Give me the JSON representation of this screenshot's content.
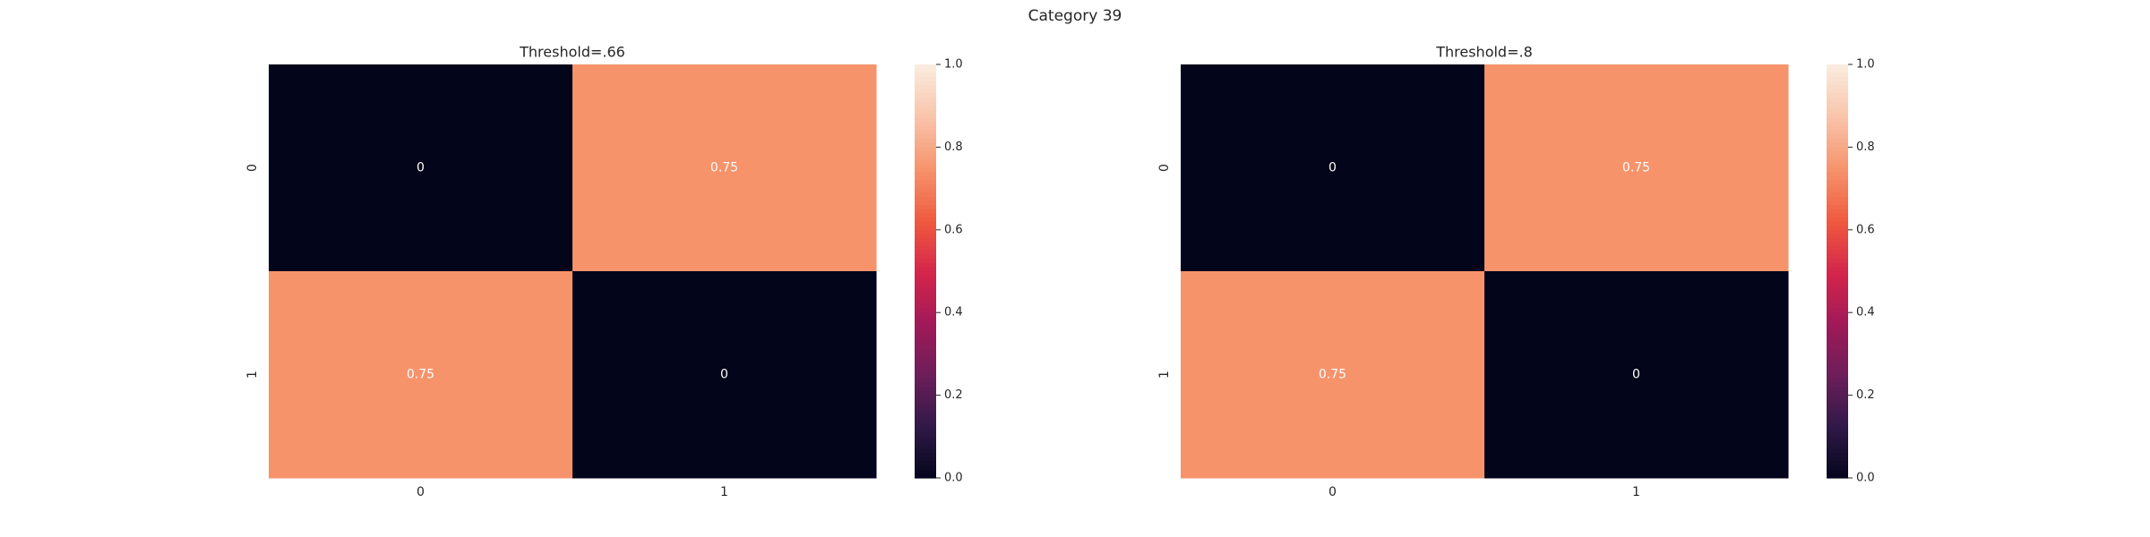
{
  "figure_title": "Category 39",
  "chart_data": [
    {
      "type": "heatmap",
      "title": "Threshold=.66",
      "x_categories": [
        "0",
        "1"
      ],
      "y_categories": [
        "0",
        "1"
      ],
      "values": [
        [
          0,
          0.75
        ],
        [
          0.75,
          0
        ]
      ],
      "annotations": [
        [
          "0",
          "0.75"
        ],
        [
          "0.75",
          "0"
        ]
      ],
      "colorbar": {
        "range": [
          0.0,
          1.0
        ],
        "ticks": [
          "0.0",
          "0.2",
          "0.4",
          "0.6",
          "0.8",
          "1.0"
        ]
      },
      "grid": false
    },
    {
      "type": "heatmap",
      "title": "Threshold=.8",
      "x_categories": [
        "0",
        "1"
      ],
      "y_categories": [
        "0",
        "1"
      ],
      "values": [
        [
          0,
          0.75
        ],
        [
          0.75,
          0
        ]
      ],
      "annotations": [
        [
          "0",
          "0.75"
        ],
        [
          "0.75",
          "0"
        ]
      ],
      "colorbar": {
        "range": [
          0.0,
          1.0
        ],
        "ticks": [
          "0.0",
          "0.2",
          "0.4",
          "0.6",
          "0.8",
          "1.0"
        ]
      },
      "grid": false
    }
  ],
  "colors": {
    "colormap": [
      "#03051a",
      "#2e1947",
      "#6b1e5a",
      "#a01a58",
      "#d4254b",
      "#ef5a3f",
      "#f6936b",
      "#f8c3a9",
      "#faebdd"
    ],
    "text": "#262626"
  }
}
